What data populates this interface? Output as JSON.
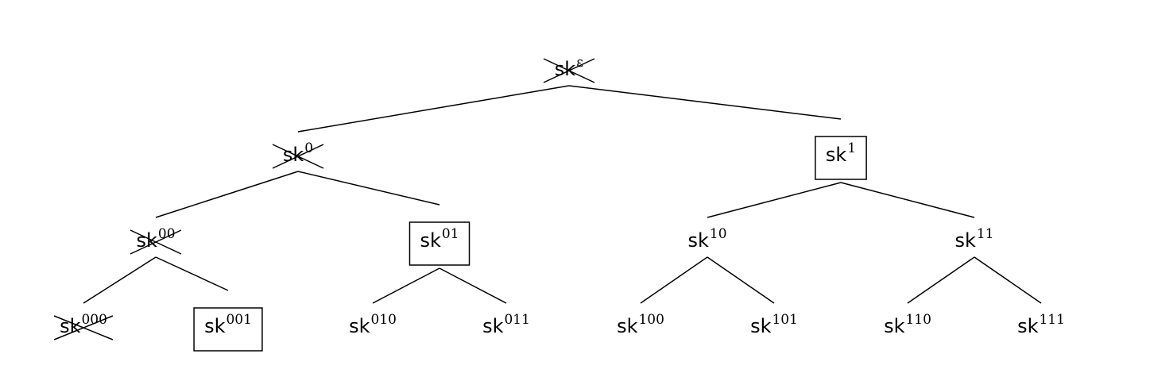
{
  "tree": {
    "label_base": "sk",
    "nodes": [
      {
        "id": "eps",
        "sup": "ε",
        "depth": 0,
        "crossed": true,
        "boxed": false
      },
      {
        "id": "n0",
        "sup": "0",
        "depth": 1,
        "crossed": true,
        "boxed": false
      },
      {
        "id": "n1",
        "sup": "1",
        "depth": 1,
        "crossed": false,
        "boxed": true
      },
      {
        "id": "n00",
        "sup": "00",
        "depth": 2,
        "crossed": true,
        "boxed": false
      },
      {
        "id": "n01",
        "sup": "01",
        "depth": 2,
        "crossed": false,
        "boxed": true
      },
      {
        "id": "n10",
        "sup": "10",
        "depth": 2,
        "crossed": false,
        "boxed": false
      },
      {
        "id": "n11",
        "sup": "11",
        "depth": 2,
        "crossed": false,
        "boxed": false
      },
      {
        "id": "n000",
        "sup": "000",
        "depth": 3,
        "crossed": true,
        "boxed": false
      },
      {
        "id": "n001",
        "sup": "001",
        "depth": 3,
        "crossed": false,
        "boxed": true
      },
      {
        "id": "n010",
        "sup": "010",
        "depth": 3,
        "crossed": false,
        "boxed": false
      },
      {
        "id": "n011",
        "sup": "011",
        "depth": 3,
        "crossed": false,
        "boxed": false
      },
      {
        "id": "n100",
        "sup": "100",
        "depth": 3,
        "crossed": false,
        "boxed": false
      },
      {
        "id": "n101",
        "sup": "101",
        "depth": 3,
        "crossed": false,
        "boxed": false
      },
      {
        "id": "n110",
        "sup": "110",
        "depth": 3,
        "crossed": false,
        "boxed": false
      },
      {
        "id": "n111",
        "sup": "111",
        "depth": 3,
        "crossed": false,
        "boxed": false
      }
    ],
    "edges": [
      [
        "eps",
        "n0"
      ],
      [
        "eps",
        "n1"
      ],
      [
        "n0",
        "n00"
      ],
      [
        "n0",
        "n01"
      ],
      [
        "n1",
        "n10"
      ],
      [
        "n1",
        "n11"
      ],
      [
        "n00",
        "n000"
      ],
      [
        "n00",
        "n001"
      ],
      [
        "n01",
        "n010"
      ],
      [
        "n01",
        "n011"
      ],
      [
        "n10",
        "n100"
      ],
      [
        "n10",
        "n101"
      ],
      [
        "n11",
        "n110"
      ],
      [
        "n11",
        "n111"
      ]
    ]
  }
}
